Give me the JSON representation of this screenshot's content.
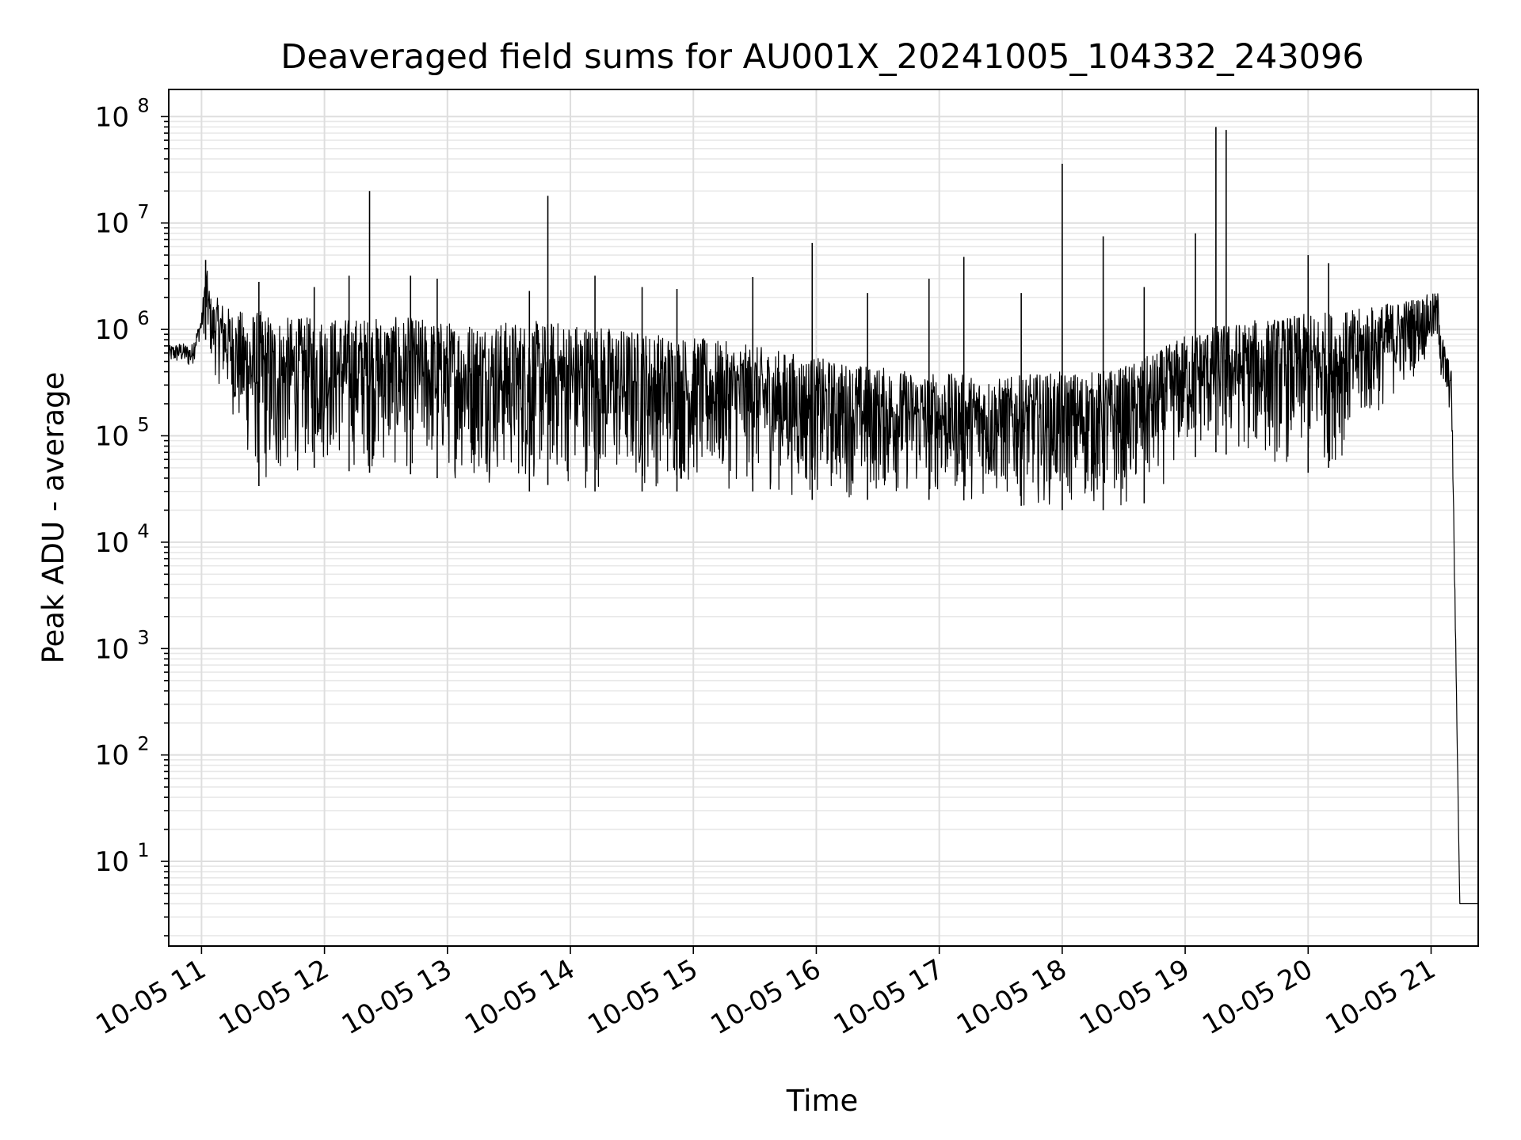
{
  "chart_data": {
    "type": "line",
    "title": "Deaveraged field sums for AU001X_20241005_104332_243096",
    "xlabel": "Time",
    "ylabel": "Peak ADU - average",
    "y_scale": "log",
    "ylim": [
      1.6,
      180000000
    ],
    "xlim": [
      "2024-10-05 10:44",
      "2024-10-05 21:23"
    ],
    "grid": true,
    "x_ticks": [
      "10-05 11",
      "10-05 12",
      "10-05 13",
      "10-05 14",
      "10-05 15",
      "10-05 16",
      "10-05 17",
      "10-05 18",
      "10-05 19",
      "10-05 20",
      "10-05 21"
    ],
    "y_ticks": [
      {
        "base": "10",
        "exp": "1"
      },
      {
        "base": "10",
        "exp": "2"
      },
      {
        "base": "10",
        "exp": "3"
      },
      {
        "base": "10",
        "exp": "4"
      },
      {
        "base": "10",
        "exp": "5"
      },
      {
        "base": "10",
        "exp": "6"
      },
      {
        "base": "10",
        "exp": "7"
      },
      {
        "base": "10",
        "exp": "8"
      }
    ],
    "line_color": "#000000",
    "series": [
      {
        "x": [
          "2024-10-05 10:44",
          "2024-10-05 10:50",
          "2024-10-05 10:55",
          "2024-10-05 11:00",
          "2024-10-05 11:02",
          "2024-10-05 11:05",
          "2024-10-05 11:08",
          "2024-10-05 11:15",
          "2024-10-05 11:20",
          "2024-10-05 11:25",
          "2024-10-05 11:30",
          "2024-10-05 11:35",
          "2024-10-05 11:40",
          "2024-10-05 11:45",
          "2024-10-05 11:55",
          "2024-10-05 12:05",
          "2024-10-05 12:15",
          "2024-10-05 12:25",
          "2024-10-05 12:35",
          "2024-10-05 12:45",
          "2024-10-05 12:55",
          "2024-10-05 13:10",
          "2024-10-05 13:25",
          "2024-10-05 13:40",
          "2024-10-05 13:50",
          "2024-10-05 14:00",
          "2024-10-05 14:15",
          "2024-10-05 14:30",
          "2024-10-05 14:50",
          "2024-10-05 15:10",
          "2024-10-05 15:30",
          "2024-10-05 15:50",
          "2024-10-05 16:10",
          "2024-10-05 16:30",
          "2024-10-05 16:50",
          "2024-10-05 17:10",
          "2024-10-05 17:30",
          "2024-10-05 17:45",
          "2024-10-05 18:00",
          "2024-10-05 18:15",
          "2024-10-05 18:30",
          "2024-10-05 18:45",
          "2024-10-05 19:00",
          "2024-10-05 19:15",
          "2024-10-05 19:30",
          "2024-10-05 19:45",
          "2024-10-05 20:00",
          "2024-10-05 20:10",
          "2024-10-05 20:15",
          "2024-10-05 20:20",
          "2024-10-05 21:02",
          "2024-10-05 21:04",
          "2024-10-05 21:05",
          "2024-10-05 21:10",
          "2024-10-05 21:14",
          "2024-10-05 21:16",
          "2024-10-05 21:23"
        ],
        "y_low": [
          450000,
          450000,
          400000,
          900000,
          800000,
          400000,
          300000,
          150000,
          60000,
          40000,
          30000,
          20000,
          35000,
          40000,
          50000,
          50000,
          45000,
          45000,
          40000,
          45000,
          40000,
          35000,
          35000,
          30000,
          35000,
          30000,
          30000,
          30000,
          30000,
          30000,
          30000,
          25000,
          25000,
          25000,
          25000,
          25000,
          22000,
          22000,
          20000,
          20000,
          20000,
          25000,
          60000,
          70000,
          60000,
          50000,
          45000,
          50000,
          55000,
          70000,
          600000,
          500000,
          200000,
          150000,
          4,
          4,
          4
        ],
        "y_high": [
          700000,
          750000,
          700000,
          1300000,
          4500000,
          1800000,
          2000000,
          1500000,
          1500000,
          1500000,
          1500000,
          1400000,
          1300000,
          1300000,
          1300000,
          1300000,
          1300000,
          1300000,
          1300000,
          1300000,
          1200000,
          1200000,
          1200000,
          1200000,
          1200000,
          1200000,
          1100000,
          1000000,
          900000,
          800000,
          700000,
          600000,
          500000,
          450000,
          400000,
          380000,
          350000,
          380000,
          400000,
          400000,
          450000,
          600000,
          900000,
          1100000,
          1200000,
          1300000,
          1400000,
          1500000,
          1500000,
          1500000,
          2200000,
          2300000,
          1000000,
          400000,
          4,
          4,
          4
        ]
      }
    ],
    "spikes": [
      {
        "x": "2024-10-05 11:02",
        "y": 4500000
      },
      {
        "x": "2024-10-05 11:28",
        "y": 2800000
      },
      {
        "x": "2024-10-05 11:55",
        "y": 2500000
      },
      {
        "x": "2024-10-05 12:12",
        "y": 3200000
      },
      {
        "x": "2024-10-05 12:22",
        "y": 20000000
      },
      {
        "x": "2024-10-05 12:42",
        "y": 3200000
      },
      {
        "x": "2024-10-05 12:55",
        "y": 3000000
      },
      {
        "x": "2024-10-05 13:40",
        "y": 2300000
      },
      {
        "x": "2024-10-05 13:49",
        "y": 18000000
      },
      {
        "x": "2024-10-05 14:12",
        "y": 3200000
      },
      {
        "x": "2024-10-05 14:35",
        "y": 2500000
      },
      {
        "x": "2024-10-05 14:52",
        "y": 2400000
      },
      {
        "x": "2024-10-05 15:29",
        "y": 3100000
      },
      {
        "x": "2024-10-05 15:58",
        "y": 6500000
      },
      {
        "x": "2024-10-05 16:25",
        "y": 2200000
      },
      {
        "x": "2024-10-05 16:55",
        "y": 3000000
      },
      {
        "x": "2024-10-05 17:12",
        "y": 4800000
      },
      {
        "x": "2024-10-05 17:40",
        "y": 2200000
      },
      {
        "x": "2024-10-05 18:00",
        "y": 36000000
      },
      {
        "x": "2024-10-05 18:20",
        "y": 7500000
      },
      {
        "x": "2024-10-05 18:40",
        "y": 2500000
      },
      {
        "x": "2024-10-05 19:05",
        "y": 8000000
      },
      {
        "x": "2024-10-05 19:15",
        "y": 80000000
      },
      {
        "x": "2024-10-05 19:20",
        "y": 75000000
      },
      {
        "x": "2024-10-05 20:00",
        "y": 5000000
      },
      {
        "x": "2024-10-05 20:10",
        "y": 4200000
      }
    ]
  }
}
